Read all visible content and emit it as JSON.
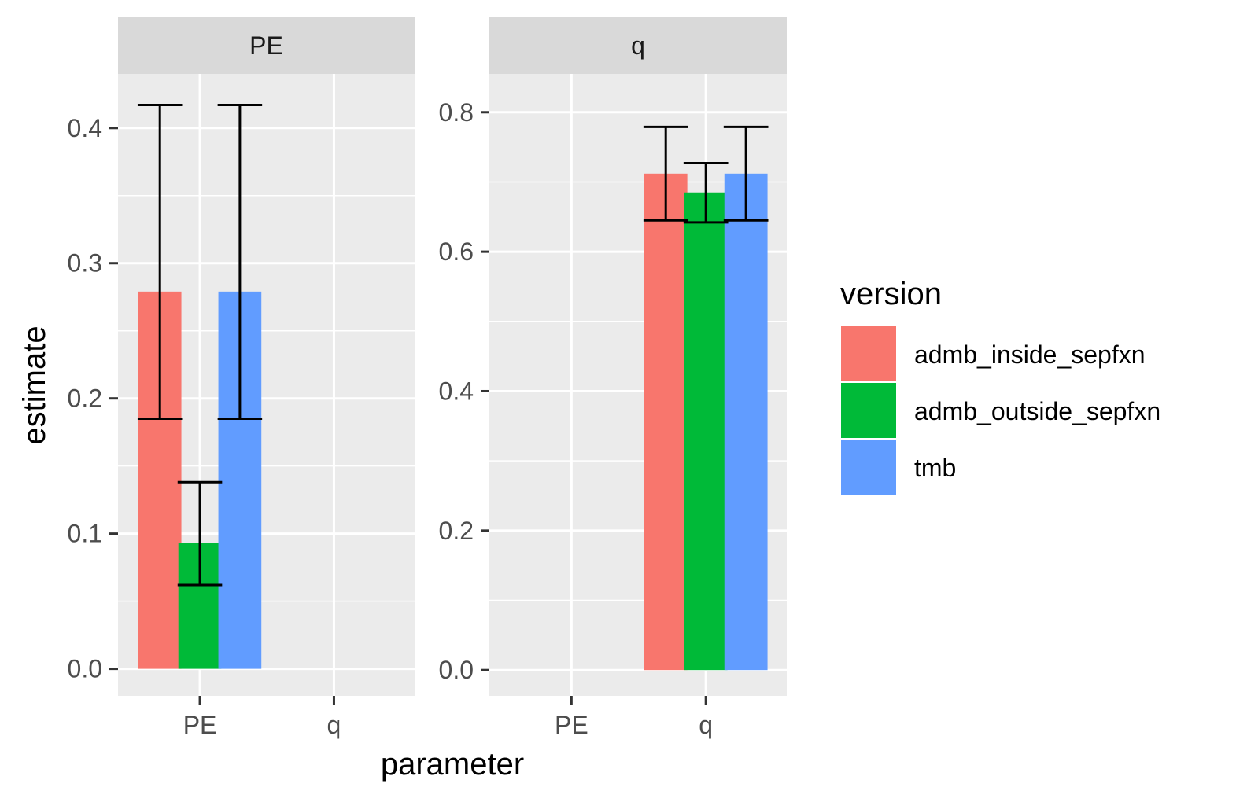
{
  "chart_data": {
    "type": "bar",
    "facet_by": "parameter",
    "xlabel": "parameter",
    "ylabel": "estimate",
    "legend": {
      "title": "version",
      "placement": "right",
      "entries": [
        {
          "name": "admb_inside_sepfxn",
          "color": "#F8766D"
        },
        {
          "name": "admb_outside_sepfxn",
          "color": "#00BA38"
        },
        {
          "name": "tmb",
          "color": "#619CFF"
        }
      ]
    },
    "categories": [
      "PE",
      "q"
    ],
    "panels": [
      {
        "strip": "PE",
        "ylim": [
          -0.02,
          0.44
        ],
        "yticks": [
          {
            "value": 0.0,
            "label": "0.0"
          },
          {
            "value": 0.1,
            "label": "0.1"
          },
          {
            "value": 0.2,
            "label": "0.2"
          },
          {
            "value": 0.3,
            "label": "0.3"
          },
          {
            "value": 0.4,
            "label": "0.4"
          }
        ],
        "category": "PE",
        "bars": [
          {
            "series": "admb_inside_sepfxn",
            "value": 0.279,
            "lower": 0.185,
            "upper": 0.417
          },
          {
            "series": "admb_outside_sepfxn",
            "value": 0.093,
            "lower": 0.062,
            "upper": 0.138
          },
          {
            "series": "tmb",
            "value": 0.279,
            "lower": 0.185,
            "upper": 0.417
          }
        ]
      },
      {
        "strip": "q",
        "ylim": [
          -0.037,
          0.855
        ],
        "yticks": [
          {
            "value": 0.0,
            "label": "0.0"
          },
          {
            "value": 0.2,
            "label": "0.2"
          },
          {
            "value": 0.4,
            "label": "0.4"
          },
          {
            "value": 0.6,
            "label": "0.6"
          },
          {
            "value": 0.8,
            "label": "0.8"
          }
        ],
        "category": "q",
        "bars": [
          {
            "series": "admb_inside_sepfxn",
            "value": 0.712,
            "lower": 0.645,
            "upper": 0.779
          },
          {
            "series": "admb_outside_sepfxn",
            "value": 0.685,
            "lower": 0.642,
            "upper": 0.727
          },
          {
            "series": "tmb",
            "value": 0.712,
            "lower": 0.645,
            "upper": 0.779
          }
        ]
      }
    ],
    "grid": true,
    "panel_background": "#EBEBEB",
    "strip_background": "#D9D9D9"
  }
}
